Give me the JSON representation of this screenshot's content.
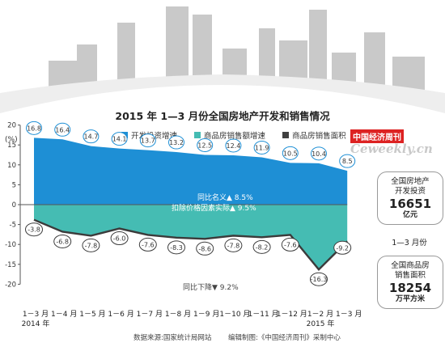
{
  "title": "2015 年 1—3 月份全国房地产开发和销售情况",
  "unit_label": "(%)",
  "brand": {
    "cn": "中国经济周刊",
    "en": "Ceweekly.cn"
  },
  "legend": [
    {
      "label": "开发投资增速",
      "color": "#1e8fd5"
    },
    {
      "label": "商品房销售额增速",
      "color": "#45bcb3"
    },
    {
      "label": "商品房销售面积",
      "color": "#404040"
    }
  ],
  "annotations": {
    "nominal": "同比名义▲ 8.5%",
    "real": "扣除价格因素实际▲ 9.5%",
    "decline": "同比下降▼ 9.2%"
  },
  "panels": {
    "investment": {
      "line1": "全国房地产",
      "line2": "开发投资",
      "value": "16651",
      "unit": "亿元"
    },
    "period": "1—3 月份",
    "sales": {
      "line1": "全国商品房",
      "line2": "销售面积",
      "value": "18254",
      "unit": "万平方米"
    }
  },
  "footer": {
    "source": "数据来源:国家统计局网站",
    "editor": "编辑制图:《中国经济周刊》采制中心"
  },
  "chart_data": {
    "type": "area",
    "title": "2015 年 1—3 月份全国房地产开发和销售情况",
    "ylabel": "(%)",
    "ylim": [
      -20,
      20
    ],
    "yticks": [
      -20,
      -15,
      -10,
      -5,
      0,
      5,
      10,
      15,
      20
    ],
    "categories": [
      "1－3 月",
      "1－4 月",
      "1－5 月",
      "1－6 月",
      "1－7 月",
      "1－8 月",
      "1－9 月",
      "1－10 月",
      "1－11 月",
      "1－12 月",
      "1－2 月",
      "1－3 月"
    ],
    "year_labels": [
      {
        "index": 0,
        "text": "2014 年"
      },
      {
        "index": 10,
        "text": "2015 年"
      }
    ],
    "series": [
      {
        "name": "开发投资增速",
        "values": [
          16.8,
          16.4,
          14.7,
          14.1,
          13.7,
          13.2,
          12.5,
          12.4,
          11.9,
          10.5,
          10.4,
          8.5
        ],
        "labels": [
          "16.8",
          "16.4",
          "14.7",
          "14.1",
          "13.7",
          "13.2",
          "12.5",
          "12.4",
          "11.9",
          "10.5",
          "10.4",
          "8.5"
        ]
      },
      {
        "name": "商品房销售面积",
        "values": [
          -3.8,
          -6.8,
          -7.8,
          -6.0,
          -7.6,
          -8.3,
          -8.6,
          -7.8,
          -8.2,
          -7.6,
          -16.3,
          -9.2
        ],
        "labels": [
          "-3.8",
          "-6.8",
          "-7.8",
          "-6.0",
          "-7.6",
          "-8.3",
          "-8.6",
          "-7.8",
          "-8.2",
          "-7.6",
          "-16.3",
          "-9.2"
        ]
      }
    ],
    "grid": false,
    "legend_position": "top"
  }
}
